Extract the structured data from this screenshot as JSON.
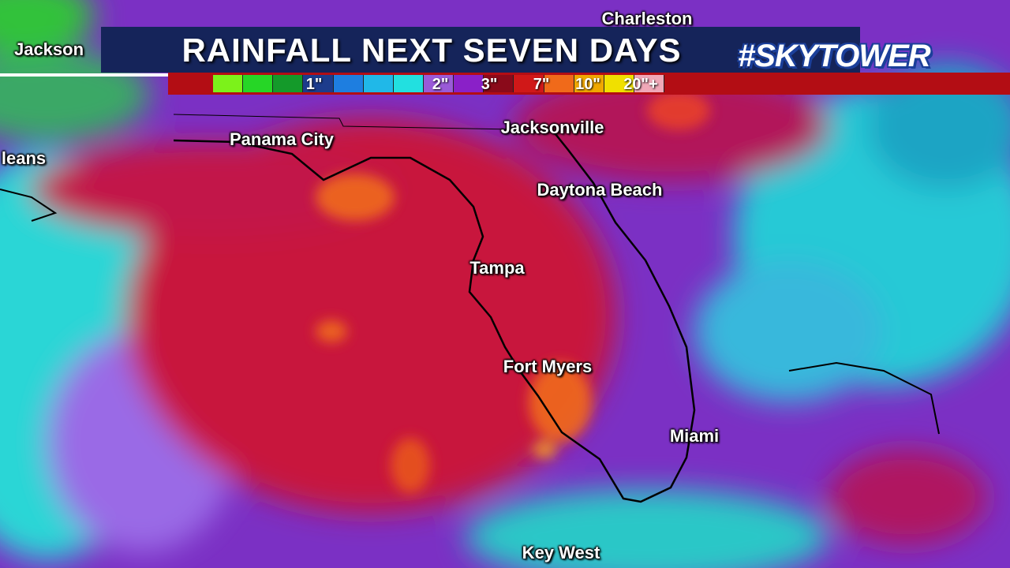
{
  "header": {
    "title": "RAINFALL NEXT SEVEN DAYS",
    "logo": "#SKYTOWER"
  },
  "legend": {
    "labels": [
      "1\"",
      "2\"",
      "3\"",
      "7\"",
      "10\"",
      "20\"+"
    ]
  },
  "cities": [
    "Charleston",
    "Jackson",
    "leans",
    "Panama City",
    "Jacksonville",
    "Daytona Beach",
    "Tampa",
    "Fort Myers",
    "Miami",
    "Key West"
  ]
}
